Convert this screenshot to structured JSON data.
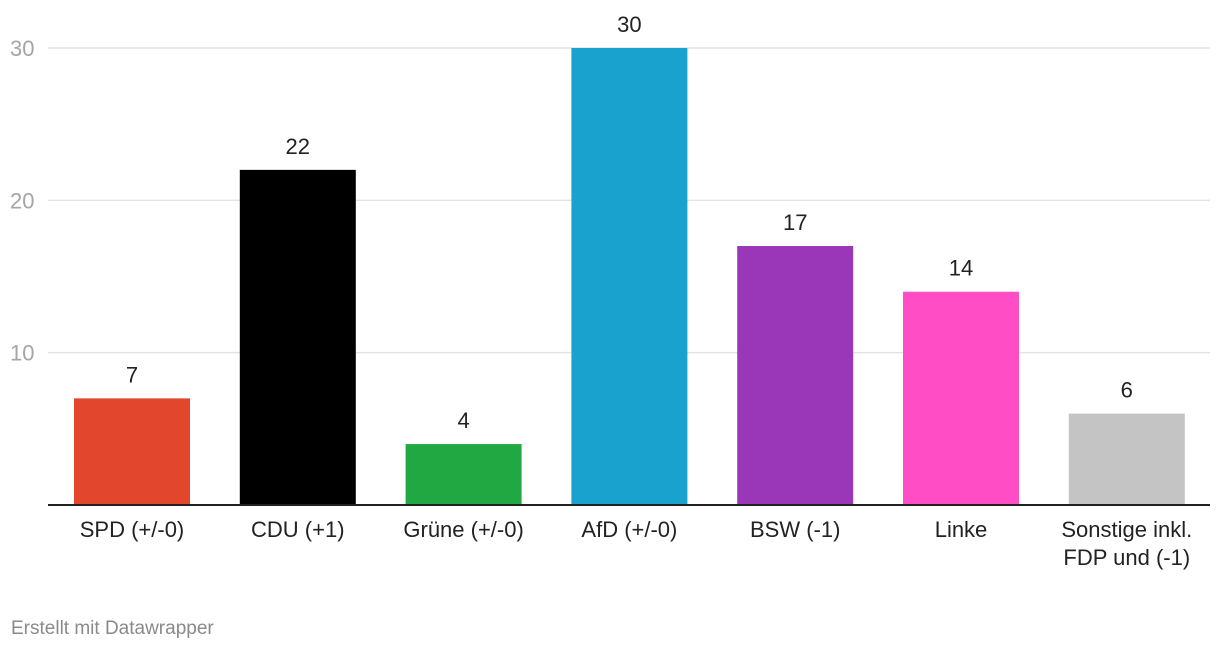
{
  "chart_data": {
    "type": "bar",
    "title": "",
    "xlabel": "",
    "ylabel": "",
    "ylim": [
      0,
      30
    ],
    "yticks": [
      10,
      20,
      30
    ],
    "grid": true,
    "categories": [
      [
        "SPD (+/-0)"
      ],
      [
        "CDU (+1)"
      ],
      [
        "Grüne (+/-0)"
      ],
      [
        "AfD (+/-0)"
      ],
      [
        "BSW (-1)"
      ],
      [
        "Linke"
      ],
      [
        "Sonstige inkl.",
        "FDP und (-1)"
      ]
    ],
    "values": [
      7,
      22,
      4,
      30,
      17,
      14,
      6
    ],
    "colors": [
      "#e2472e",
      "#000000",
      "#21a843",
      "#1aa2cf",
      "#9a36b8",
      "#ff4ec5",
      "#c4c4c4"
    ]
  },
  "footer": {
    "credit": "Erstellt mit Datawrapper"
  }
}
